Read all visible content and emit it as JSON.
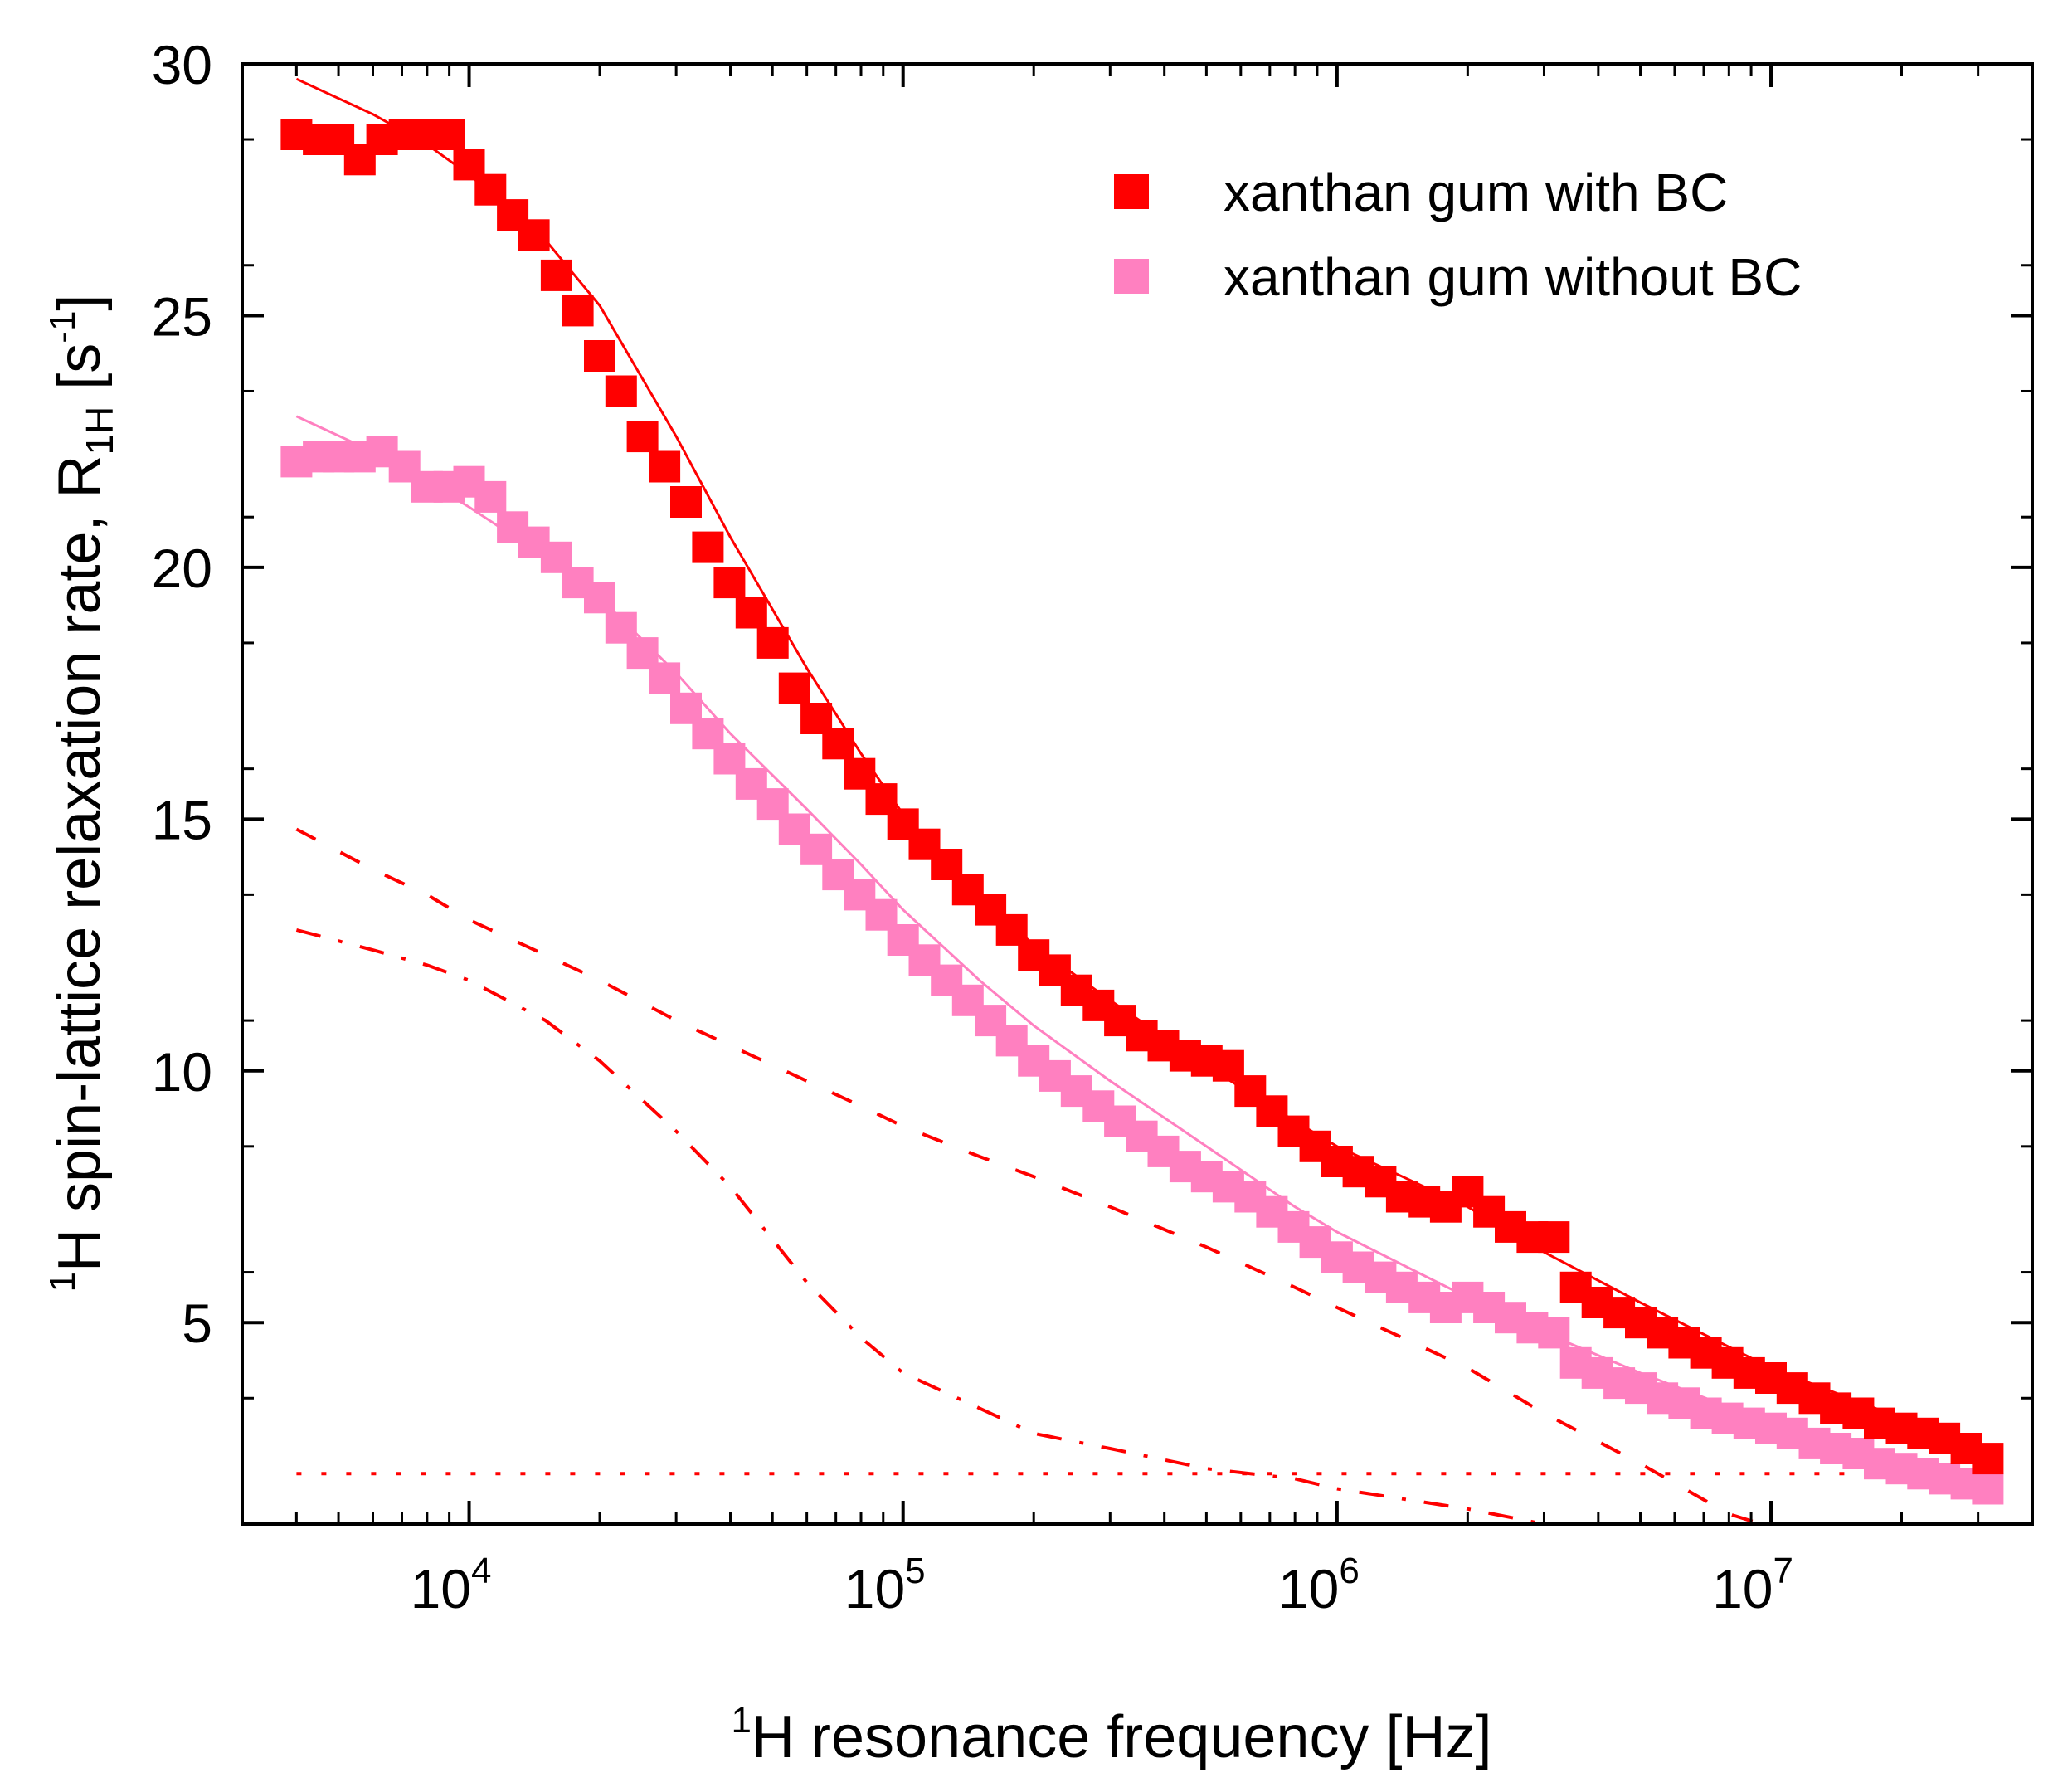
{
  "chart_data": {
    "type": "scatter",
    "title": "",
    "xlabel": {
      "sup": "1",
      "text": "H resonance frequency [Hz]"
    },
    "ylabel": {
      "sup": "1",
      "main": "H spin-lattice relaxation rate, R",
      "sub": "1H",
      "unit_open": " [s",
      "unit_sup": "-1",
      "unit_close": "]"
    },
    "x_scale": "log",
    "xlim": [
      3000,
      40000000
    ],
    "ylim": [
      1,
      30
    ],
    "x_ticks": [
      {
        "value": 10000,
        "base": "10",
        "exp": "4"
      },
      {
        "value": 100000,
        "base": "10",
        "exp": "5"
      },
      {
        "value": 1000000,
        "base": "10",
        "exp": "6"
      },
      {
        "value": 10000000,
        "base": "10",
        "exp": "7"
      }
    ],
    "y_ticks": [
      5,
      10,
      15,
      20,
      25,
      30
    ],
    "legend_position": "top-right",
    "series": [
      {
        "name": "xanthan gum with BC",
        "color": "#ff0000",
        "marker": "square",
        "x": [
          4000,
          4500,
          5000,
          5600,
          6300,
          7100,
          8000,
          9000,
          10000,
          11200,
          12600,
          14100,
          15900,
          17800,
          20000,
          22400,
          25100,
          28200,
          31600,
          35500,
          39800,
          44700,
          50100,
          56200,
          63100,
          70800,
          79400,
          89100,
          100000,
          112000,
          126000,
          141000,
          159000,
          178000,
          200000,
          224000,
          251000,
          282000,
          316000,
          355000,
          398000,
          447000,
          501000,
          562000,
          631000,
          708000,
          794000,
          891000,
          1000000,
          1120000,
          1260000,
          1410000,
          1590000,
          1780000,
          2000000,
          2240000,
          2510000,
          2820000,
          3160000,
          3550000,
          3980000,
          4470000,
          5010000,
          5620000,
          6310000,
          7080000,
          7940000,
          8910000,
          10000000,
          11200000,
          12600000,
          14100000,
          15900000,
          17800000,
          20000000,
          22400000,
          25100000,
          28200000,
          31600000
        ],
        "y": [
          28.6,
          28.5,
          28.5,
          28.1,
          28.5,
          28.6,
          28.6,
          28.6,
          28.0,
          27.5,
          27.0,
          26.6,
          25.8,
          25.1,
          24.2,
          23.5,
          22.6,
          22.0,
          21.3,
          20.4,
          19.7,
          19.1,
          18.5,
          17.6,
          17.0,
          16.5,
          15.9,
          15.4,
          14.9,
          14.5,
          14.1,
          13.6,
          13.2,
          12.8,
          12.3,
          12.0,
          11.6,
          11.3,
          11.0,
          10.7,
          10.5,
          10.3,
          10.2,
          10.1,
          9.6,
          9.2,
          8.8,
          8.5,
          8.2,
          8.0,
          7.8,
          7.5,
          7.4,
          7.3,
          7.6,
          7.2,
          6.9,
          6.7,
          6.7,
          5.7,
          5.4,
          5.2,
          5.0,
          4.8,
          4.6,
          4.4,
          4.2,
          4.0,
          3.9,
          3.7,
          3.5,
          3.3,
          3.2,
          3.0,
          2.9,
          2.8,
          2.7,
          2.5,
          2.3
        ]
      },
      {
        "name": "xanthan gum without BC",
        "color": "#ff80c0",
        "marker": "square",
        "x": [
          4000,
          4500,
          5000,
          5600,
          6300,
          7100,
          8000,
          9000,
          10000,
          11200,
          12600,
          14100,
          15900,
          17800,
          20000,
          22400,
          25100,
          28200,
          31600,
          35500,
          39800,
          44700,
          50100,
          56200,
          63100,
          70800,
          79400,
          89100,
          100000,
          112000,
          126000,
          141000,
          159000,
          178000,
          200000,
          224000,
          251000,
          282000,
          316000,
          355000,
          398000,
          447000,
          501000,
          562000,
          631000,
          708000,
          794000,
          891000,
          1000000,
          1120000,
          1260000,
          1410000,
          1590000,
          1780000,
          2000000,
          2240000,
          2510000,
          2820000,
          3160000,
          3550000,
          3980000,
          4470000,
          5010000,
          5620000,
          6310000,
          7080000,
          7940000,
          8910000,
          10000000,
          11200000,
          12600000,
          14100000,
          15900000,
          17800000,
          20000000,
          22400000,
          25100000,
          28200000,
          31600000
        ],
        "y": [
          22.1,
          22.2,
          22.2,
          22.2,
          22.3,
          22.0,
          21.6,
          21.6,
          21.7,
          21.4,
          20.8,
          20.5,
          20.2,
          19.7,
          19.4,
          18.8,
          18.3,
          17.8,
          17.2,
          16.7,
          16.2,
          15.7,
          15.3,
          14.8,
          14.4,
          13.9,
          13.5,
          13.1,
          12.6,
          12.2,
          11.8,
          11.4,
          11.0,
          10.6,
          10.2,
          9.9,
          9.6,
          9.3,
          9.0,
          8.7,
          8.4,
          8.1,
          7.9,
          7.7,
          7.5,
          7.2,
          6.9,
          6.6,
          6.3,
          6.1,
          5.9,
          5.7,
          5.5,
          5.3,
          5.5,
          5.3,
          5.1,
          4.9,
          4.8,
          4.2,
          4.0,
          3.8,
          3.7,
          3.5,
          3.4,
          3.2,
          3.1,
          3.0,
          2.9,
          2.8,
          2.6,
          2.5,
          2.4,
          2.2,
          2.1,
          2.0,
          1.9,
          1.8,
          1.7
        ]
      }
    ],
    "fit_lines": [
      {
        "name": "fit-with-bc-total",
        "style": "solid",
        "color": "#ff0000",
        "x": [
          4000,
          6000,
          8000,
          10000,
          15000,
          20000,
          30000,
          40000,
          60000,
          80000,
          100000,
          150000,
          200000,
          300000,
          500000,
          800000,
          1000000,
          2000000,
          3000000,
          5000000,
          10000000,
          20000000,
          31600000
        ],
        "y": [
          29.7,
          29.0,
          28.4,
          27.8,
          26.5,
          25.2,
          22.6,
          20.6,
          18.0,
          16.3,
          15.1,
          13.5,
          12.5,
          11.4,
          10.1,
          9.0,
          8.5,
          7.3,
          6.4,
          5.4,
          4.1,
          3.1,
          2.5
        ]
      },
      {
        "name": "fit-without-bc-total",
        "style": "solid",
        "color": "#ff80c0",
        "x": [
          4000,
          6000,
          8000,
          10000,
          15000,
          20000,
          30000,
          40000,
          60000,
          80000,
          100000,
          150000,
          200000,
          300000,
          500000,
          800000,
          1000000,
          2000000,
          3000000,
          5000000,
          10000000,
          20000000,
          31600000
        ],
        "y": [
          23.0,
          22.3,
          21.7,
          21.2,
          20.2,
          19.4,
          17.9,
          16.7,
          15.2,
          14.1,
          13.2,
          11.8,
          10.9,
          9.8,
          8.5,
          7.3,
          6.8,
          5.5,
          4.8,
          4.0,
          3.0,
          2.2,
          1.8
        ]
      },
      {
        "name": "component-dashed",
        "style": "dashed",
        "color": "#ff0000",
        "x": [
          4000,
          6000,
          8000,
          10000,
          15000,
          20000,
          30000,
          40000,
          60000,
          80000,
          100000,
          150000,
          200000,
          300000,
          500000,
          800000,
          1000000,
          2000000,
          3000000,
          5000000,
          8000000,
          9500000
        ],
        "y": [
          14.8,
          14.0,
          13.5,
          13.0,
          12.3,
          11.8,
          11.0,
          10.5,
          9.8,
          9.3,
          8.9,
          8.3,
          7.9,
          7.3,
          6.5,
          5.7,
          5.3,
          4.1,
          3.2,
          2.2,
          1.2,
          1.0
        ]
      },
      {
        "name": "component-dash-dot",
        "style": "dashdot",
        "color": "#ff0000",
        "x": [
          4000,
          6000,
          8000,
          10000,
          15000,
          20000,
          30000,
          40000,
          60000,
          80000,
          100000,
          150000,
          200000,
          300000,
          500000,
          800000,
          1000000,
          2000000,
          3000000
        ],
        "y": [
          12.8,
          12.4,
          12.1,
          11.8,
          11.0,
          10.2,
          8.8,
          7.7,
          5.8,
          4.7,
          4.0,
          3.3,
          2.8,
          2.5,
          2.1,
          1.9,
          1.7,
          1.3,
          1.0
        ]
      },
      {
        "name": "component-dotted",
        "style": "dotted",
        "color": "#ff0000",
        "x": [
          4000,
          31600000
        ],
        "y": [
          2.0,
          2.0
        ]
      }
    ]
  }
}
